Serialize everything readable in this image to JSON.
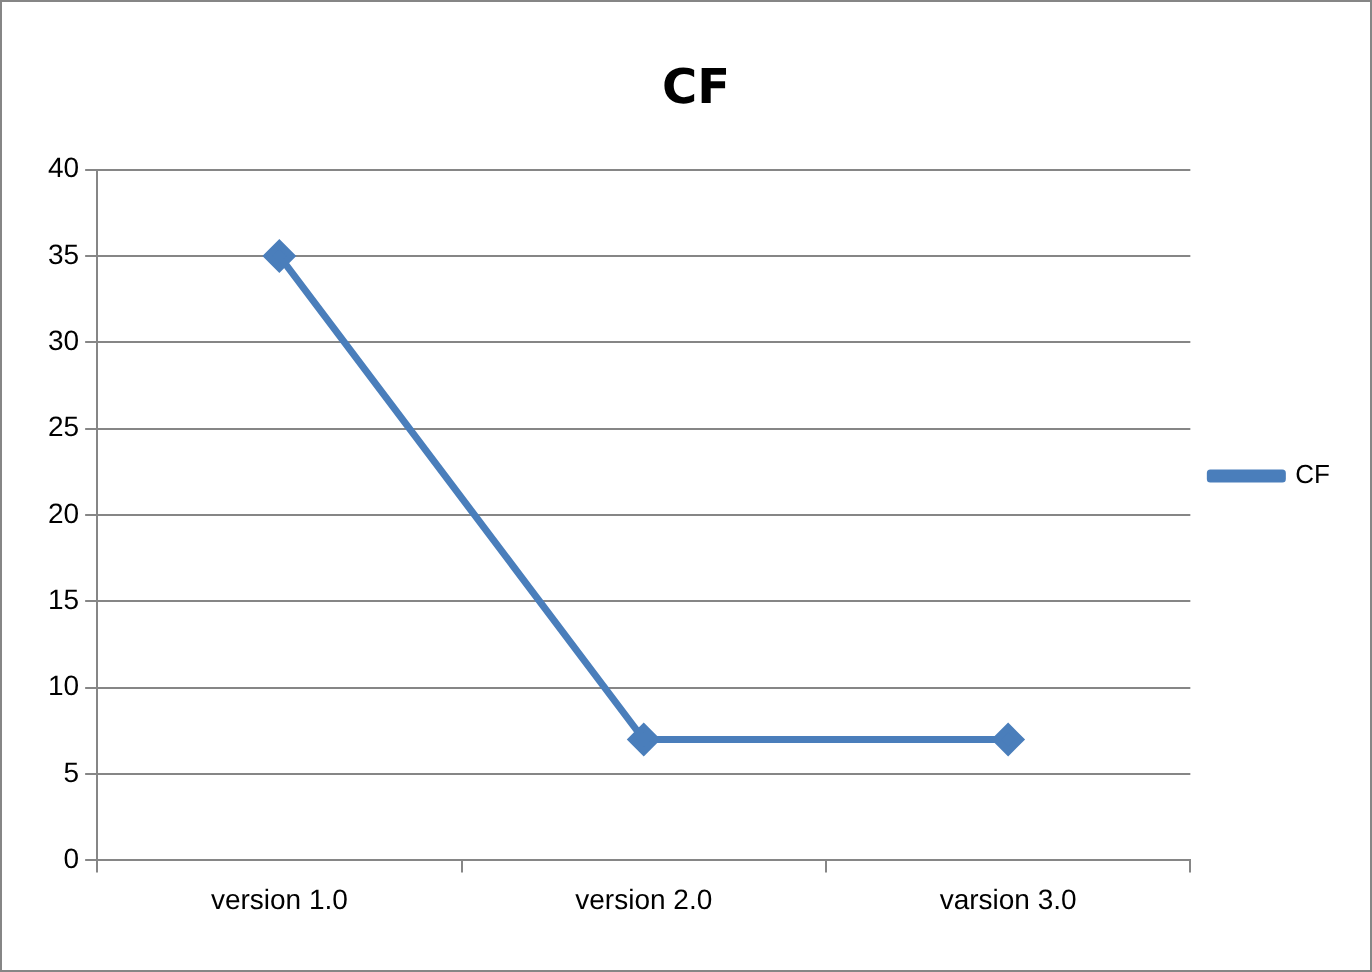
{
  "chart_data": {
    "type": "line",
    "title": "CF",
    "categories": [
      "version 1.0",
      "version 2.0",
      "varsion 3.0"
    ],
    "series": [
      {
        "name": "CF",
        "color": "#4a7ebb",
        "values": [
          35,
          7,
          7
        ]
      }
    ],
    "ylim": [
      0,
      40
    ],
    "yticks": [
      0,
      5,
      10,
      15,
      20,
      25,
      30,
      35,
      40
    ],
    "grid": "y",
    "legend": "right",
    "marker": "diamond",
    "line_style": "solid"
  }
}
